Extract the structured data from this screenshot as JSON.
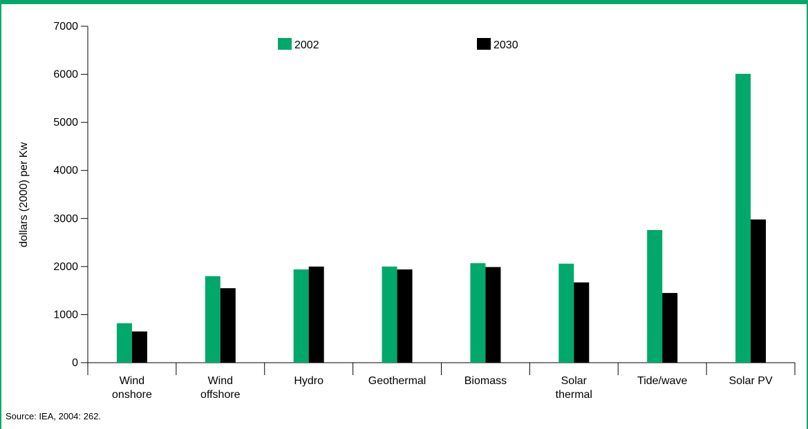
{
  "chart_data": {
    "type": "bar",
    "categories": [
      [
        "Wind",
        "onshore"
      ],
      [
        "Wind",
        "offshore"
      ],
      [
        "Hydro"
      ],
      [
        "Geothermal"
      ],
      [
        "Biomass"
      ],
      [
        "Solar",
        "thermal"
      ],
      [
        "Tide/wave"
      ],
      [
        "Solar PV"
      ]
    ],
    "series": [
      {
        "name": "2002",
        "color": "#00a86b",
        "values": [
          820,
          1800,
          1940,
          2000,
          2070,
          2060,
          2760,
          6010
        ]
      },
      {
        "name": "2030",
        "color": "#000000",
        "values": [
          650,
          1550,
          2000,
          1940,
          1990,
          1670,
          1450,
          2980
        ]
      }
    ],
    "ylabel": "dollars (2000) per Kw",
    "xlabel": "",
    "ylim": [
      0,
      7000
    ],
    "yticks": [
      0,
      1000,
      2000,
      3000,
      4000,
      5000,
      6000,
      7000
    ],
    "legend_position": "top-center",
    "grid": false
  },
  "source_note": "Source: IEA, 2004: 262.",
  "colors": {
    "frame": "#00a86b"
  }
}
